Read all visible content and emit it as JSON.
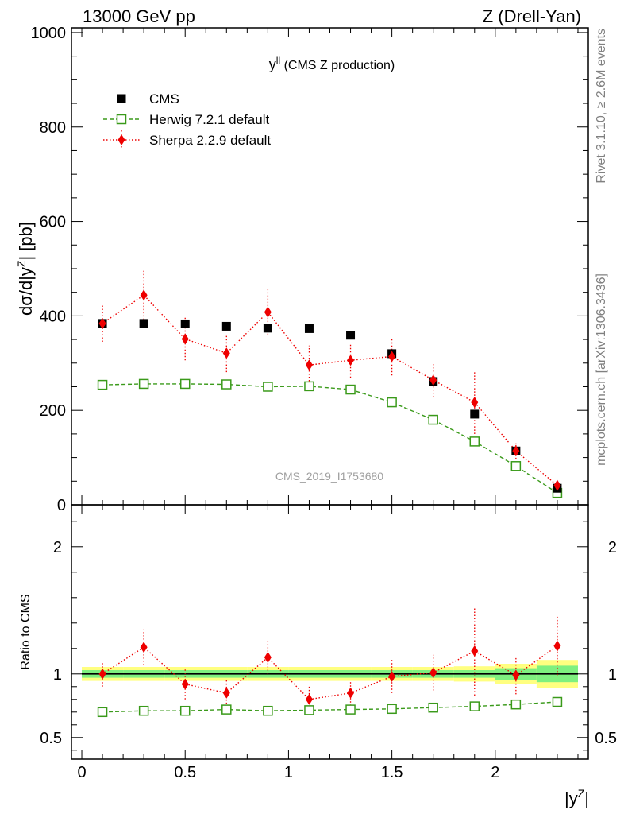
{
  "header": {
    "left": "13000 GeV pp",
    "right": "Z (Drell-Yan)"
  },
  "side_text": {
    "top": "Rivet 3.1.10, ≥ 2.6M events",
    "bottom": "mcplots.cern.ch [arXiv:1306.3436]"
  },
  "watermark": "CMS_2019_I1753680",
  "colors": {
    "cms": "#000000",
    "herwig": "#3a9a1a",
    "sherpa": "#ee0000",
    "band_inner": "#7ff07f",
    "band_outer": "#ffff80"
  },
  "chart_data": [
    {
      "type": "line",
      "title": "y",
      "title_sup": "ll",
      "title_suffix": " (CMS Z production)",
      "ylabel": "dσ/d|y",
      "ylabel_sup": "Z",
      "ylabel_suffix": "| [pb]",
      "xlim": [
        -0.05,
        2.45
      ],
      "ylim": [
        0,
        1010
      ],
      "y_ticks": [
        0,
        200,
        400,
        600,
        800,
        1000
      ],
      "legend_position": "top-left",
      "x": [
        0.1,
        0.3,
        0.5,
        0.7,
        0.9,
        1.1,
        1.3,
        1.5,
        1.7,
        1.9,
        2.1,
        2.3
      ],
      "series": [
        {
          "name": "CMS",
          "marker": "filled-square",
          "values": [
            384,
            384,
            383,
            378,
            374,
            373,
            359,
            320,
            261,
            192,
            114,
            35
          ]
        },
        {
          "name": "Herwig 7.2.1 default",
          "marker": "open-square",
          "line": "dashed",
          "values": [
            254,
            256,
            256,
            255,
            250,
            251,
            244,
            217,
            180,
            134,
            82,
            25
          ],
          "yerr": [
            1,
            1,
            1,
            1,
            1,
            1,
            1,
            1,
            1,
            1,
            1,
            1
          ]
        },
        {
          "name": "Sherpa 2.2.9 default",
          "marker": "filled-diamond",
          "line": "dotted",
          "values": [
            384,
            444,
            351,
            321,
            408,
            296,
            306,
            314,
            264,
            217,
            114,
            41
          ],
          "yerr": [
            39,
            52,
            45,
            40,
            48,
            41,
            37,
            40,
            36,
            67,
            17,
            8
          ]
        }
      ]
    },
    {
      "type": "line",
      "ylabel": "Ratio to CMS",
      "xlabel": "|y",
      "xlabel_sup": "Z",
      "xlabel_suffix": "|",
      "xlim": [
        -0.05,
        2.45
      ],
      "ylim": [
        0.33,
        2.33
      ],
      "y_ticks": [
        0.5,
        1,
        2
      ],
      "y_tick_labels": [
        "0.5",
        "1",
        "2"
      ],
      "x_ticks": [
        0,
        0.5,
        1,
        1.5,
        2
      ],
      "x_tick_labels": [
        "0",
        "0.5",
        "1",
        "1.5",
        "2"
      ],
      "reference": 1,
      "band_inner": [
        0.03,
        0.03,
        0.03,
        0.03,
        0.03,
        0.03,
        0.03,
        0.03,
        0.03,
        0.03,
        0.045,
        0.065
      ],
      "band_outer": [
        0.055,
        0.055,
        0.055,
        0.055,
        0.055,
        0.055,
        0.055,
        0.055,
        0.055,
        0.06,
        0.08,
        0.11
      ],
      "x": [
        0.1,
        0.3,
        0.5,
        0.7,
        0.9,
        1.1,
        1.3,
        1.5,
        1.7,
        1.9,
        2.1,
        2.3
      ],
      "series": [
        {
          "name": "Herwig 7.2.1 default",
          "values": [
            0.7,
            0.71,
            0.71,
            0.72,
            0.71,
            0.715,
            0.72,
            0.725,
            0.735,
            0.745,
            0.76,
            0.78
          ]
        },
        {
          "name": "Sherpa 2.2.9 default",
          "values": [
            1.0,
            1.21,
            0.92,
            0.85,
            1.13,
            0.8,
            0.85,
            0.98,
            1.01,
            1.18,
            0.99,
            1.22
          ],
          "yerr": [
            0.1,
            0.14,
            0.12,
            0.11,
            0.13,
            0.11,
            0.1,
            0.13,
            0.14,
            0.35,
            0.15,
            0.23
          ]
        }
      ]
    }
  ]
}
